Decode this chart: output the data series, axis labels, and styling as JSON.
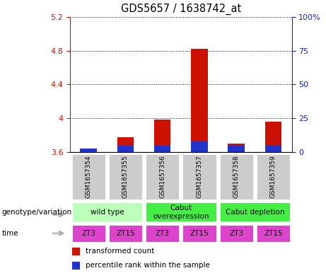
{
  "title": "GDS5657 / 1638742_at",
  "samples": [
    "GSM1657354",
    "GSM1657355",
    "GSM1657356",
    "GSM1657357",
    "GSM1657358",
    "GSM1657359"
  ],
  "transformed_counts": [
    3.62,
    3.78,
    3.99,
    4.82,
    3.7,
    3.96
  ],
  "percentile_ranks_raw": [
    3,
    5,
    5,
    8,
    5,
    5
  ],
  "ylim_left": [
    3.6,
    5.2
  ],
  "ylim_right": [
    0,
    100
  ],
  "yticks_left": [
    3.6,
    4.0,
    4.4,
    4.8,
    5.2
  ],
  "yticks_right": [
    0,
    25,
    50,
    75,
    100
  ],
  "ytick_labels_left": [
    "3.6",
    "4",
    "4.4",
    "4.8",
    "5.2"
  ],
  "ytick_labels_right": [
    "0",
    "25",
    "50",
    "75",
    "100%"
  ],
  "genotype_groups": [
    {
      "label": "wild type",
      "cols": [
        0,
        1
      ],
      "color": "#bbffbb"
    },
    {
      "label": "Cabut\noverexpression",
      "cols": [
        2,
        3
      ],
      "color": "#44ee44"
    },
    {
      "label": "Cabut depletion",
      "cols": [
        4,
        5
      ],
      "color": "#44ee44"
    }
  ],
  "time_labels": [
    "ZT3",
    "ZT15",
    "ZT3",
    "ZT15",
    "ZT3",
    "ZT15"
  ],
  "time_color": "#dd44cc",
  "sample_bg_color": "#cccccc",
  "bar_color_red": "#cc1100",
  "bar_color_blue": "#2233cc",
  "left_axis_color": "#cc1100",
  "right_axis_color": "#1122cc",
  "legend_red_label": "transformed count",
  "legend_blue_label": "percentile rank within the sample",
  "genotype_label": "genotype/variation",
  "time_label": "time"
}
